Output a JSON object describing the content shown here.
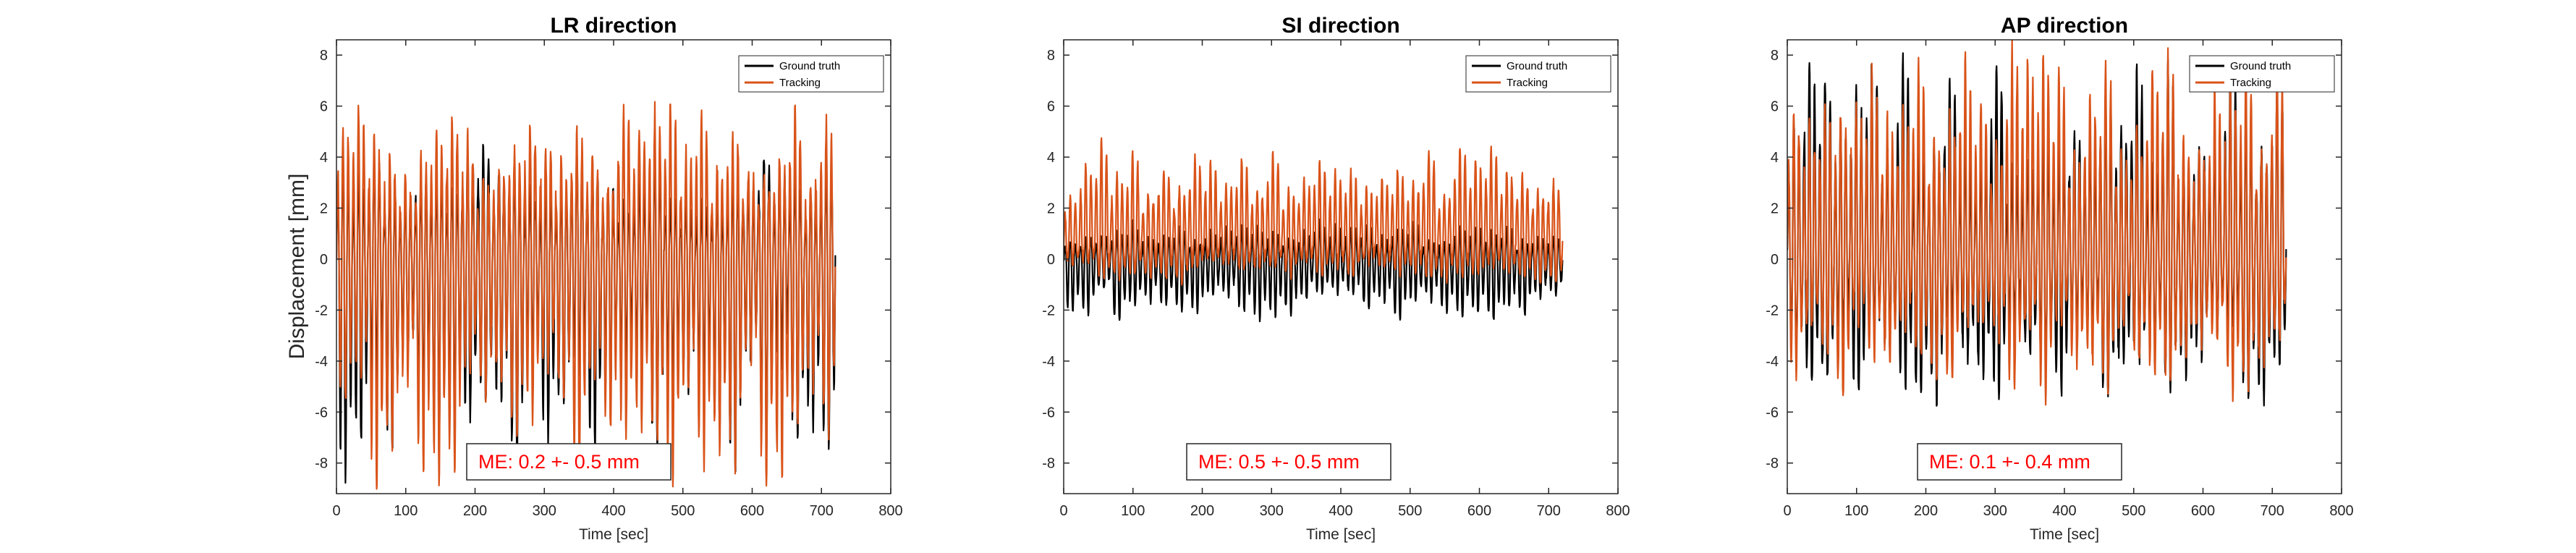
{
  "figure": {
    "ylabel": "Displacement [mm]"
  },
  "chart_data": [
    {
      "type": "line",
      "title": "LR direction",
      "xlabel": "Time [sec]",
      "ylabel": "Displacement [mm]",
      "xlim": [
        0,
        800
      ],
      "ylim": [
        -9.2,
        8.6
      ],
      "xticks": [
        0,
        100,
        200,
        300,
        400,
        500,
        600,
        700,
        800
      ],
      "yticks": [
        -8,
        -6,
        -4,
        -2,
        0,
        2,
        4,
        6,
        8
      ],
      "legend": {
        "position": "top-right",
        "entries": [
          "Ground truth",
          "Tracking"
        ]
      },
      "annotation": {
        "text": "ME: 0.2 +- 0.5 mm",
        "color": "#ff0000"
      },
      "series": [
        {
          "name": "Ground truth",
          "color": "#000000",
          "x_range": [
            0,
            720
          ],
          "mean": 0.0,
          "period_sec": 22,
          "peak_max": 4.5,
          "trough_min": -8.8,
          "cycles": 32
        },
        {
          "name": "Tracking",
          "color": "#d95319",
          "x_range": [
            0,
            720
          ],
          "mean": 0.0,
          "period_sec": 22,
          "peak_max": 6.5,
          "trough_min": -9.2,
          "cycles": 32
        }
      ]
    },
    {
      "type": "line",
      "title": "SI direction",
      "xlabel": "Time [sec]",
      "ylabel": "",
      "xlim": [
        0,
        800
      ],
      "ylim": [
        -9.2,
        8.6
      ],
      "xticks": [
        0,
        100,
        200,
        300,
        400,
        500,
        600,
        700,
        800
      ],
      "yticks": [
        -8,
        -6,
        -4,
        -2,
        0,
        2,
        4,
        6,
        8
      ],
      "legend": {
        "position": "top-right",
        "entries": [
          "Ground truth",
          "Tracking"
        ]
      },
      "annotation": {
        "text": "ME: 0.5 +- 0.5 mm",
        "color": "#ff0000"
      },
      "series": [
        {
          "name": "Ground truth",
          "color": "#000000",
          "x_range": [
            0,
            720
          ],
          "mean": 0.0,
          "period_sec": 22,
          "peak_max": 1.5,
          "trough_min": -2.6,
          "cycles": 32
        },
        {
          "name": "Tracking",
          "color": "#d95319",
          "x_range": [
            0,
            720
          ],
          "mean": 0.6,
          "period_sec": 22,
          "peak_max": 4.8,
          "trough_min": -1.0,
          "cycles": 32
        }
      ]
    },
    {
      "type": "line",
      "title": "AP direction",
      "xlabel": "Time [sec]",
      "ylabel": "",
      "xlim": [
        0,
        800
      ],
      "ylim": [
        -9.2,
        8.6
      ],
      "xticks": [
        0,
        100,
        200,
        300,
        400,
        500,
        600,
        700,
        800
      ],
      "yticks": [
        -8,
        -6,
        -4,
        -2,
        0,
        2,
        4,
        6,
        8
      ],
      "legend": {
        "position": "top-right",
        "entries": [
          "Ground truth",
          "Tracking"
        ]
      },
      "annotation": {
        "text": "ME: 0.1 +- 0.4 mm",
        "color": "#ff0000"
      },
      "series": [
        {
          "name": "Ground truth",
          "color": "#000000",
          "x_range": [
            0,
            720
          ],
          "mean": 0.0,
          "period_sec": 22,
          "peak_max": 8.2,
          "trough_min": -5.8,
          "cycles": 32
        },
        {
          "name": "Tracking",
          "color": "#d95319",
          "x_range": [
            0,
            720
          ],
          "mean": 0.1,
          "period_sec": 22,
          "peak_max": 8.6,
          "trough_min": -5.5,
          "cycles": 32
        }
      ]
    }
  ]
}
